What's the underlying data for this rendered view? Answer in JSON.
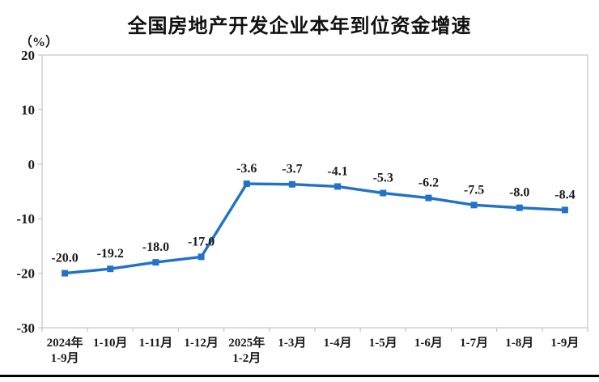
{
  "chart_data": {
    "type": "line",
    "title": "全国房地产开发企业本年到位资金增速",
    "unit": "（%）",
    "categories": [
      "2024年\n1-9月",
      "1-10月",
      "1-11月",
      "1-12月",
      "2025年\n1-2月",
      "1-3月",
      "1-4月",
      "1-5月",
      "1-6月",
      "1-7月",
      "1-8月",
      "1-9月"
    ],
    "values": [
      -20.0,
      -19.2,
      -18.0,
      -17.0,
      -3.6,
      -3.7,
      -4.1,
      -5.3,
      -6.2,
      -7.5,
      -8.0,
      -8.4
    ],
    "labels": [
      "-20.0",
      "-19.2",
      "-18.0",
      "-17.0",
      "-3.6",
      "-3.7",
      "-4.1",
      "-5.3",
      "-6.2",
      "-7.5",
      "-8.0",
      "-8.4"
    ],
    "ylim": [
      -30,
      20
    ],
    "yticks": [
      20,
      10,
      0,
      -10,
      -20,
      -30
    ],
    "grid": false,
    "legend": "none",
    "marker": "square",
    "colors": {
      "line": "#2272C8",
      "marker": "#2272C8",
      "axis": "#c9c9c9",
      "text": "#1a1a1a"
    }
  }
}
